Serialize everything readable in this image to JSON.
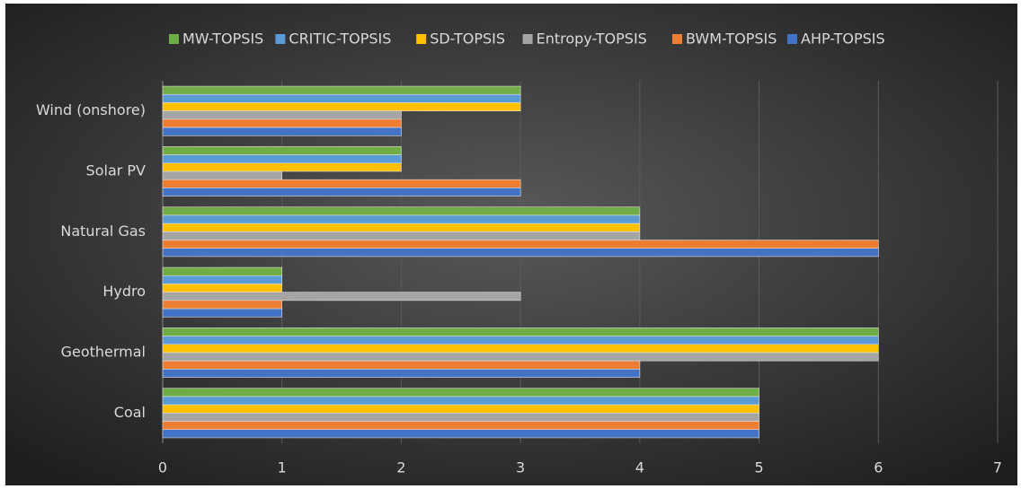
{
  "chart_data": {
    "type": "barh",
    "categories": [
      "Coal",
      "Geothermal",
      "Hydro",
      "Natural Gas",
      "Solar PV",
      "Wind (onshore)"
    ],
    "series": [
      {
        "name": "MW-TOPSIS",
        "color": "#70ad47",
        "values": [
          5,
          6,
          1,
          4,
          2,
          3
        ]
      },
      {
        "name": "CRITIC-TOPSIS",
        "color": "#5b9bd5",
        "values": [
          5,
          6,
          1,
          4,
          2,
          3
        ]
      },
      {
        "name": "SD-TOPSIS",
        "color": "#ffc000",
        "values": [
          5,
          6,
          1,
          4,
          2,
          3
        ]
      },
      {
        "name": "Entropy-TOPSIS",
        "color": "#a5a5a5",
        "values": [
          5,
          6,
          3,
          4,
          1,
          2
        ]
      },
      {
        "name": "BWM-TOPSIS",
        "color": "#ed7d31",
        "values": [
          5,
          4,
          1,
          6,
          3,
          2
        ]
      },
      {
        "name": "AHP-TOPSIS",
        "color": "#4472c4",
        "values": [
          5,
          4,
          1,
          6,
          3,
          2
        ]
      }
    ],
    "xlim": [
      0,
      7
    ],
    "xticks": [
      0,
      1,
      2,
      3,
      4,
      5,
      6,
      7
    ],
    "grid": true,
    "legend": "top"
  }
}
